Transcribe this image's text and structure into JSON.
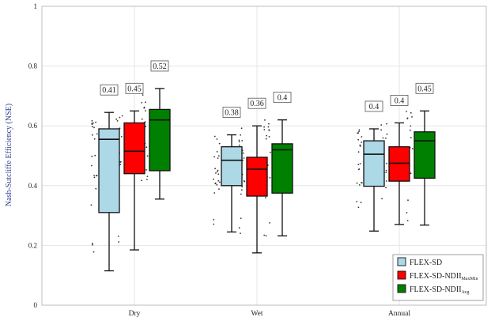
{
  "chart_data": {
    "type": "box",
    "ylabel": "Nash-Sutcliffe Efficiency (NSE)",
    "xlabel": "",
    "ylim": [
      0,
      1
    ],
    "yticks": [
      "0",
      "0.2",
      "0.4",
      "0.6",
      "0.8",
      "1"
    ],
    "grid": true,
    "legend_position": "bottom-right",
    "categories": [
      "Dry",
      "Wet",
      "Annual"
    ],
    "series": [
      {
        "name": "FLEX-SD",
        "name_main": "FLEX-SD",
        "name_sub": "",
        "color": "#add8e6",
        "boxes": [
          {
            "min": 0.115,
            "q1": 0.31,
            "median": 0.555,
            "q3": 0.59,
            "max": 0.645,
            "mean_label": "0.41"
          },
          {
            "min": 0.245,
            "q1": 0.4,
            "median": 0.485,
            "q3": 0.53,
            "max": 0.57,
            "mean_label": "0.38"
          },
          {
            "min": 0.248,
            "q1": 0.398,
            "median": 0.505,
            "q3": 0.55,
            "max": 0.59,
            "mean_label": "0.4"
          }
        ]
      },
      {
        "name": "FLEX-SD-NDIIMaxMin",
        "name_main": "FLEX-SD-NDII",
        "name_sub": "MaxMin",
        "color": "#ff0000",
        "boxes": [
          {
            "min": 0.185,
            "q1": 0.44,
            "median": 0.515,
            "q3": 0.61,
            "max": 0.65,
            "mean_label": "0.45"
          },
          {
            "min": 0.175,
            "q1": 0.365,
            "median": 0.455,
            "q3": 0.495,
            "max": 0.6,
            "mean_label": "0.36"
          },
          {
            "min": 0.27,
            "q1": 0.415,
            "median": 0.475,
            "q3": 0.53,
            "max": 0.61,
            "mean_label": "0.4"
          }
        ]
      },
      {
        "name": "FLEX-SD-NDIIAvg",
        "name_main": "FLEX-SD-NDII",
        "name_sub": "Avg",
        "color": "#008000",
        "boxes": [
          {
            "min": 0.355,
            "q1": 0.45,
            "median": 0.62,
            "q3": 0.655,
            "max": 0.725,
            "mean_label": "0.52"
          },
          {
            "min": 0.232,
            "q1": 0.375,
            "median": 0.52,
            "q3": 0.54,
            "max": 0.62,
            "mean_label": "0.4"
          },
          {
            "min": 0.268,
            "q1": 0.425,
            "median": 0.55,
            "q3": 0.58,
            "max": 0.65,
            "mean_label": "0.45"
          }
        ]
      }
    ]
  }
}
